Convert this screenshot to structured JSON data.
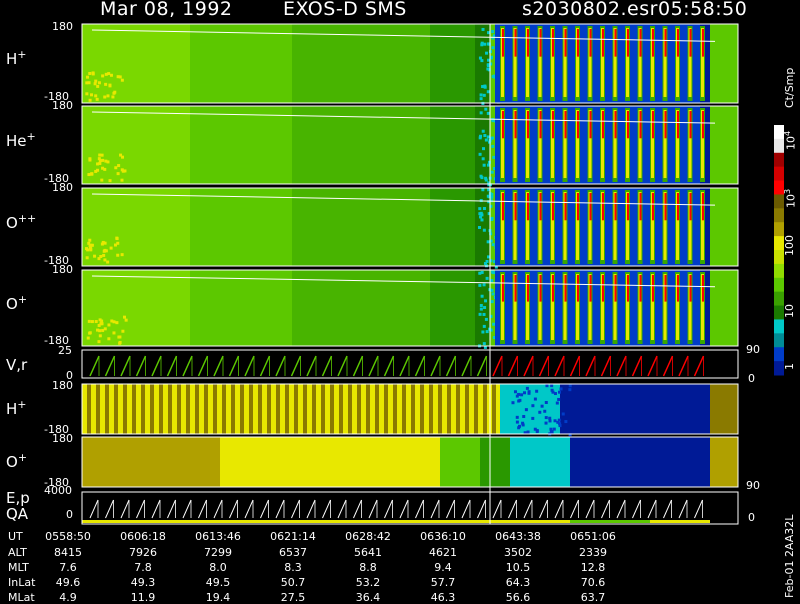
{
  "header": {
    "date": "Mar 08, 1992",
    "instrument": "EXOS-D SMS",
    "file": "s2030802.esr",
    "time": "05:58:50"
  },
  "panels": [
    {
      "name": "H+",
      "base": "H",
      "sup": "+",
      "top": "180",
      "bottom": "-180"
    },
    {
      "name": "He+",
      "base": "He",
      "sup": "+",
      "top": "180",
      "bottom": "-180"
    },
    {
      "name": "O++",
      "base": "O",
      "sup": "++",
      "top": "180",
      "bottom": "-180"
    },
    {
      "name": "O+",
      "base": "O",
      "sup": "+",
      "top": "180",
      "bottom": "-180"
    },
    {
      "name": "V,r",
      "base": "V,r",
      "sup": "",
      "top": "25",
      "bottom": "0",
      "right_top": "90",
      "right_bottom": "0"
    },
    {
      "name": "H+ (2)",
      "base": "H",
      "sup": "+",
      "top": "180",
      "bottom": "-180"
    },
    {
      "name": "O+ (2)",
      "base": "O",
      "sup": "+",
      "top": "180",
      "bottom": "-180"
    },
    {
      "name": "E,p QA",
      "base": "E,p",
      "line2": "QA",
      "top": "4000",
      "bottom": "0",
      "right_top": "90",
      "right_bottom": "0"
    }
  ],
  "colorbar": {
    "unit_label": "Ct/Smp",
    "tick_labels": [
      "10^4",
      "10^3",
      "100",
      "10",
      "1"
    ],
    "colors": [
      "#ffffff",
      "#e8e8e8",
      "#a00000",
      "#d40000",
      "#ff0000",
      "#6a5a00",
      "#8a7a00",
      "#b0a000",
      "#e8e800",
      "#c8e000",
      "#90dc00",
      "#5cc800",
      "#3aa000",
      "#1a7a00",
      "#00c8c8",
      "#008c96",
      "#003cc8",
      "#001a96"
    ]
  },
  "bottom_rows": {
    "labels": [
      "UT",
      "ALT",
      "MLT",
      "InLat",
      "MLat"
    ],
    "columns": [
      {
        "UT": "0558:50",
        "ALT": "8415",
        "MLT": "7.6",
        "InLat": "49.6",
        "MLat": "4.9"
      },
      {
        "UT": "0606:18",
        "ALT": "7926",
        "MLT": "7.8",
        "InLat": "49.3",
        "MLat": "11.9"
      },
      {
        "UT": "0613:46",
        "ALT": "7299",
        "MLT": "8.0",
        "InLat": "49.5",
        "MLat": "19.4"
      },
      {
        "UT": "0621:14",
        "ALT": "6537",
        "MLT": "8.3",
        "InLat": "50.7",
        "MLat": "27.5"
      },
      {
        "UT": "0628:42",
        "ALT": "5641",
        "MLT": "8.8",
        "InLat": "53.2",
        "MLat": "36.4"
      },
      {
        "UT": "0636:10",
        "ALT": "4621",
        "MLT": "9.4",
        "InLat": "57.7",
        "MLat": "46.3"
      },
      {
        "UT": "0643:38",
        "ALT": "3502",
        "MLT": "10.5",
        "InLat": "64.3",
        "MLat": "56.6"
      },
      {
        "UT": "0651:06",
        "ALT": "2339",
        "MLT": "12.8",
        "InLat": "70.6",
        "MLat": "63.7"
      }
    ]
  },
  "footer_note": "Feb-01 2AA32L"
}
